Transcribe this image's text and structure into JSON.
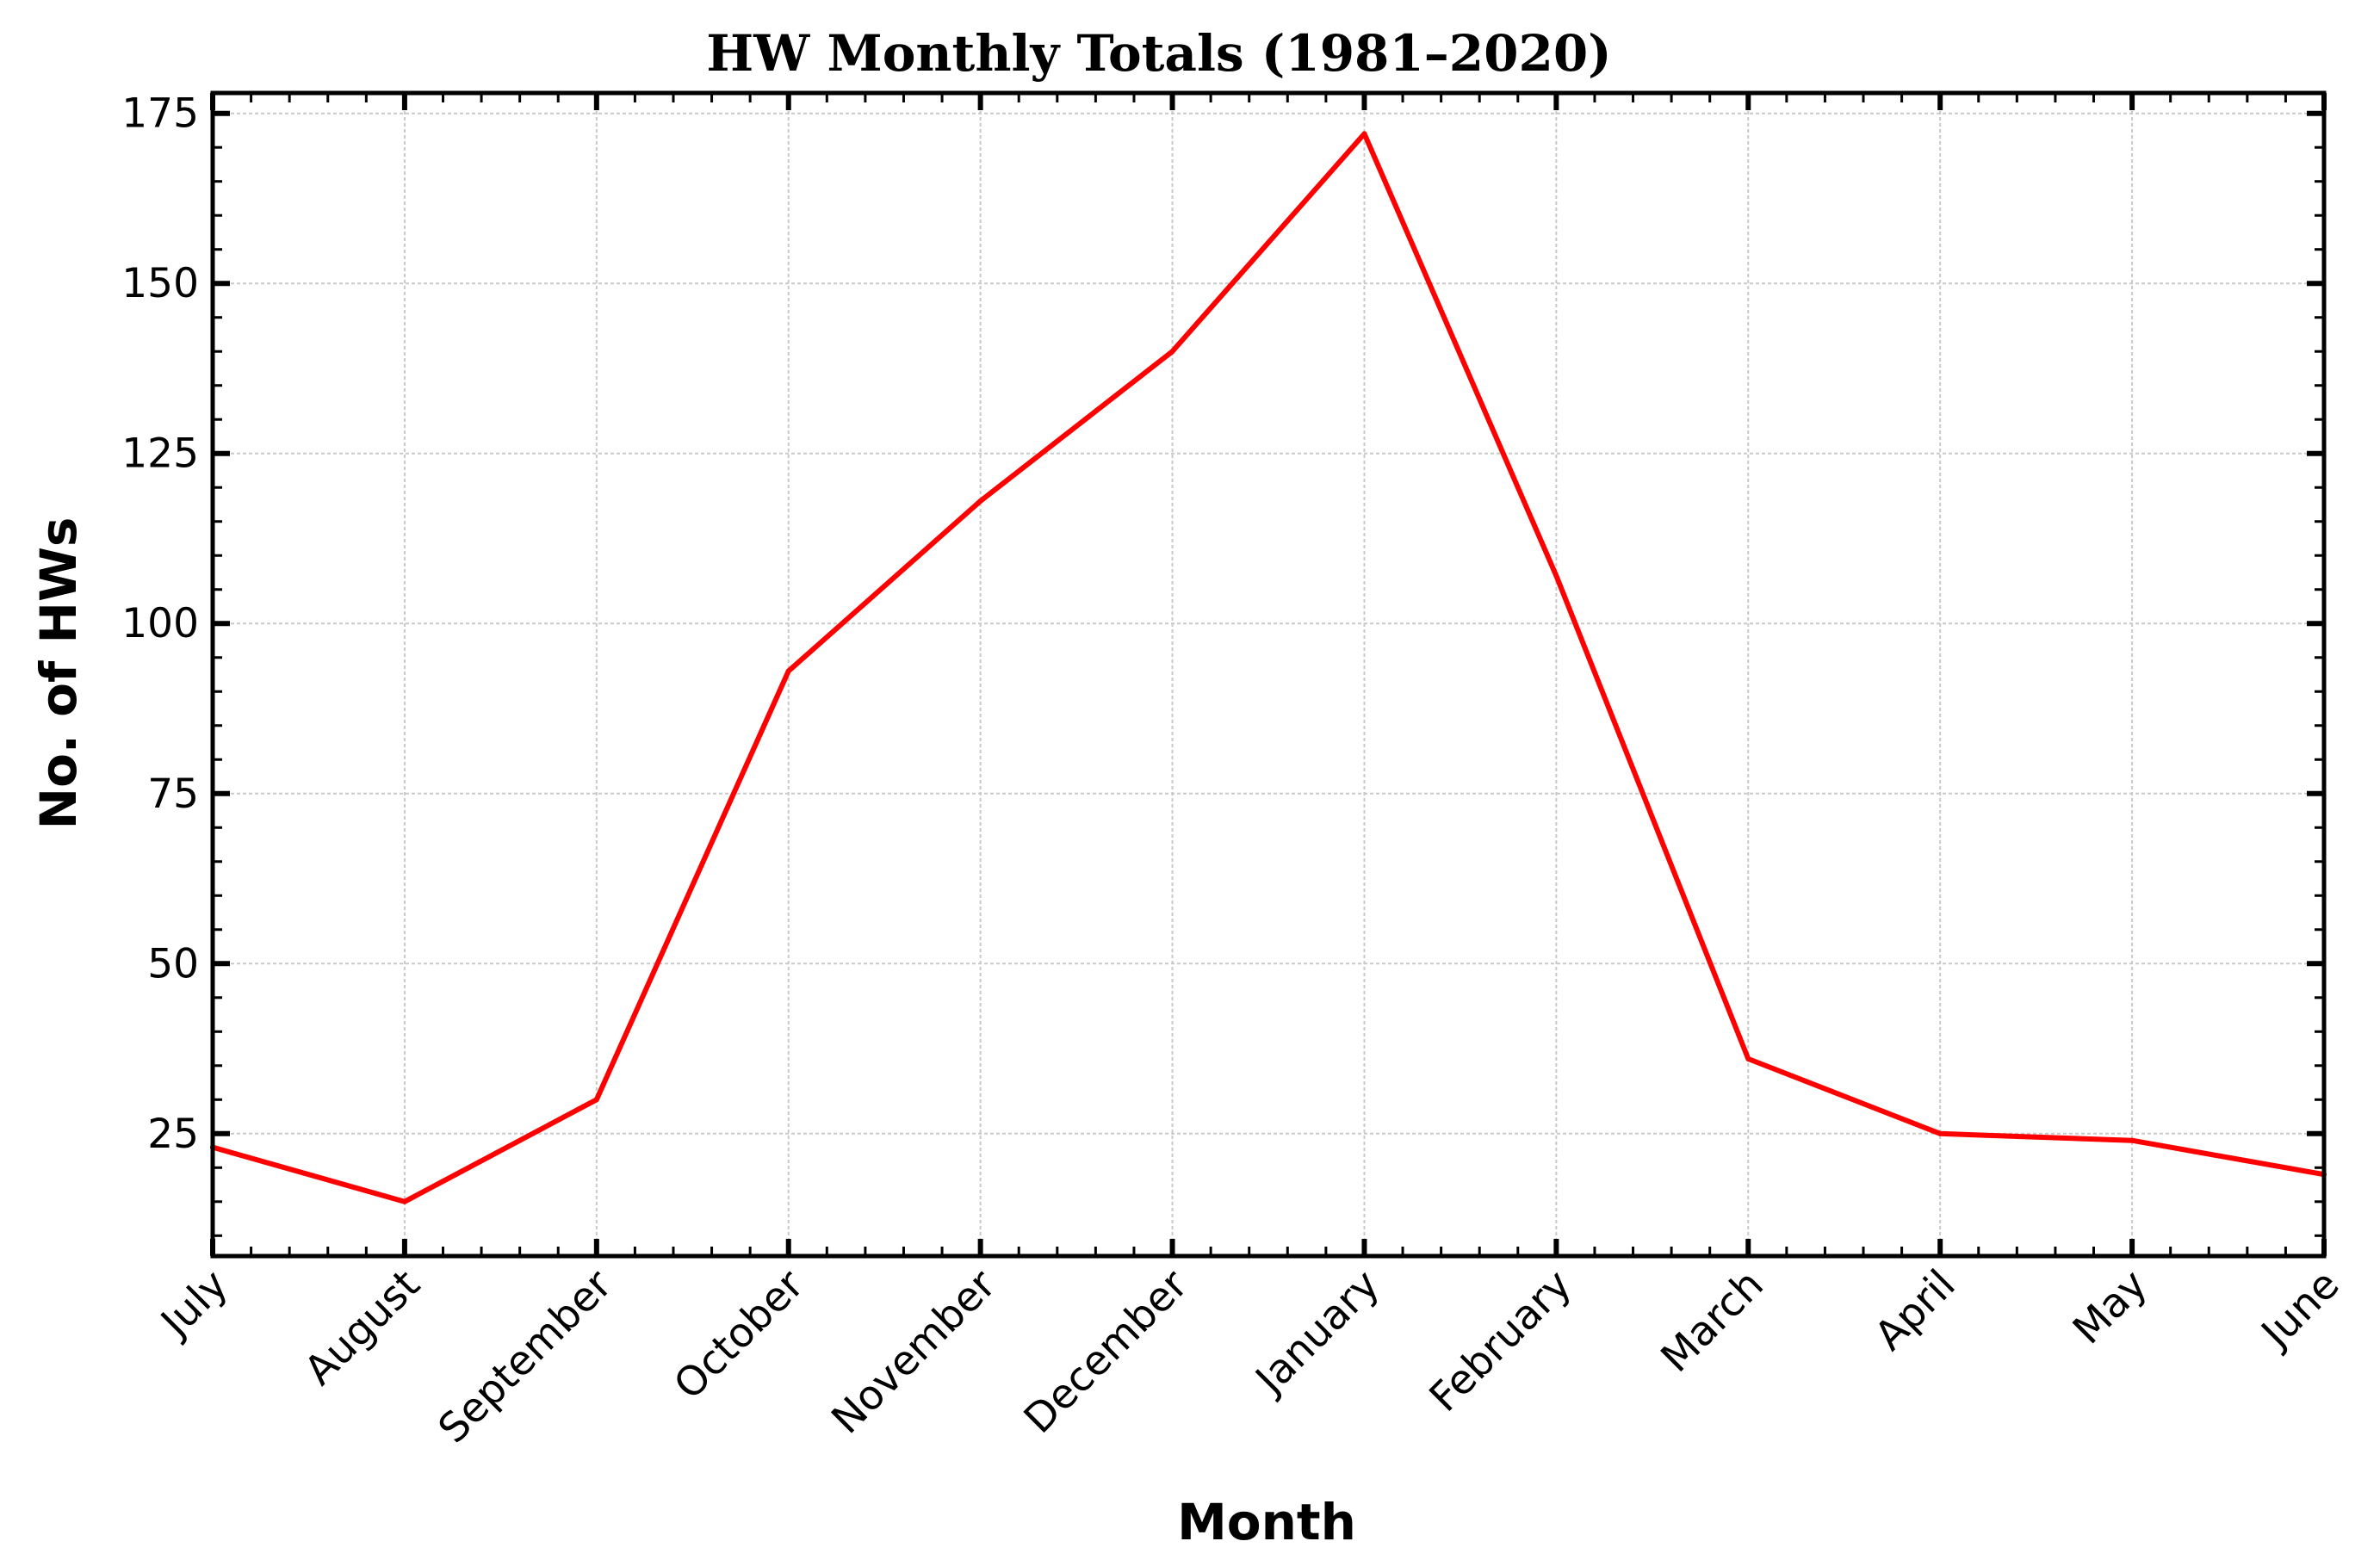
{
  "chart_data": {
    "type": "line",
    "title": "HW Monthly Totals (1981–2020)",
    "xlabel": "Month",
    "ylabel": "No. of HWs",
    "categories": [
      "July",
      "August",
      "September",
      "October",
      "November",
      "December",
      "January",
      "February",
      "March",
      "April",
      "May",
      "June"
    ],
    "series": [
      {
        "name": "HW Monthly Totals",
        "color": "#ff0000",
        "values": [
          23,
          15,
          30,
          93,
          118,
          140,
          172,
          107,
          36,
          25,
          24,
          19
        ]
      }
    ],
    "ylim": [
      7,
      178
    ],
    "yticks": [
      25,
      50,
      75,
      100,
      125,
      150,
      175
    ],
    "grid": true,
    "legend": "none"
  }
}
